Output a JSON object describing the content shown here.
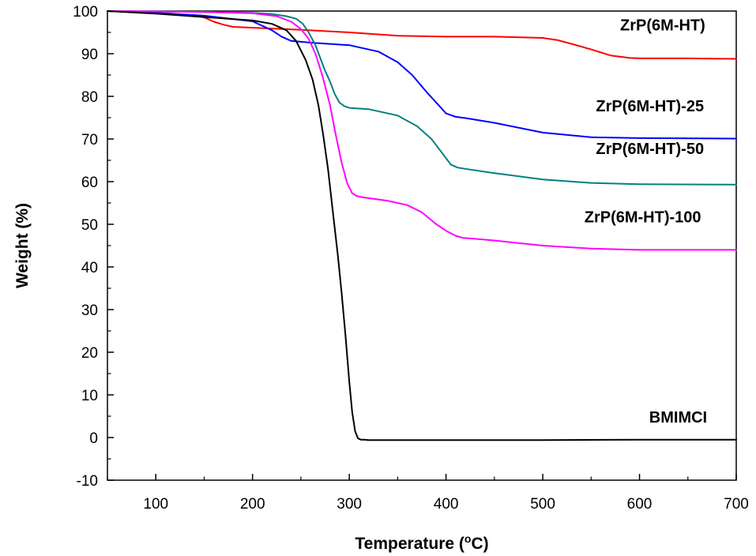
{
  "chart_data": {
    "type": "line",
    "xlabel": "Temperature (",
    "xlabel_sup": "o",
    "xlabel_unit": "C)",
    "ylabel": "Weight (%)",
    "xlim": [
      50,
      700
    ],
    "ylim": [
      -10,
      100
    ],
    "xticks": [
      100,
      200,
      300,
      400,
      500,
      600,
      700
    ],
    "yticks": [
      -10,
      0,
      10,
      20,
      30,
      40,
      50,
      60,
      70,
      80,
      90,
      100
    ],
    "grid": false,
    "legend": "inline labels",
    "series": [
      {
        "name": "ZrP(6M-HT)",
        "color": "#ff0000",
        "x": [
          50,
          100,
          140,
          150,
          160,
          170,
          180,
          200,
          250,
          300,
          350,
          400,
          450,
          500,
          515,
          530,
          550,
          570,
          590,
          600,
          650,
          700
        ],
        "y": [
          100,
          99.5,
          99,
          98.5,
          97.5,
          96.8,
          96.3,
          96.1,
          95.6,
          95,
          94.2,
          94,
          94,
          93.7,
          93.2,
          92.3,
          91,
          89.6,
          89,
          88.9,
          88.9,
          88.8
        ]
      },
      {
        "name": "ZrP(6M-HT)-25",
        "color": "#0000ff",
        "x": [
          50,
          100,
          150,
          200,
          220,
          230,
          240,
          260,
          300,
          330,
          350,
          365,
          380,
          390,
          400,
          410,
          420,
          450,
          500,
          550,
          600,
          700
        ],
        "y": [
          100,
          99.6,
          98.9,
          97.6,
          95.5,
          94,
          93,
          92.6,
          92,
          90.5,
          88,
          85,
          81,
          78.5,
          76,
          75.2,
          74.9,
          73.8,
          71.5,
          70.4,
          70.2,
          70.1
        ]
      },
      {
        "name": "ZrP(6M-HT)-50",
        "color": "#008080",
        "x": [
          50,
          100,
          200,
          220,
          235,
          245,
          252,
          258,
          265,
          270,
          275,
          280,
          285,
          290,
          295,
          300,
          320,
          350,
          370,
          385,
          395,
          405,
          412,
          420,
          450,
          500,
          550,
          600,
          700
        ],
        "y": [
          100,
          99.9,
          99.6,
          99.3,
          98.8,
          98.2,
          97,
          95,
          92,
          89,
          86,
          83.5,
          80.5,
          78.5,
          77.7,
          77.3,
          77,
          75.5,
          73,
          70,
          67,
          64,
          63.3,
          63,
          62,
          60.5,
          59.7,
          59.4,
          59.3
        ]
      },
      {
        "name": "ZrP(6M-HT)-100",
        "color": "#ff00ff",
        "x": [
          50,
          150,
          200,
          225,
          240,
          250,
          258,
          265,
          272,
          280,
          286,
          292,
          298,
          303,
          308,
          315,
          340,
          360,
          375,
          390,
          400,
          410,
          418,
          430,
          450,
          500,
          550,
          600,
          700
        ],
        "y": [
          100,
          99.8,
          99.5,
          98.8,
          97.5,
          95.8,
          93.5,
          90,
          85,
          78,
          71,
          64.5,
          59.5,
          57.3,
          56.6,
          56.3,
          55.5,
          54.5,
          52.8,
          50,
          48.5,
          47.3,
          46.8,
          46.6,
          46.2,
          45,
          44.3,
          44,
          44
        ]
      },
      {
        "name": "BMIMCI",
        "color": "#000000",
        "x": [
          50,
          100,
          150,
          200,
          220,
          235,
          245,
          255,
          262,
          268,
          273,
          278,
          283,
          288,
          292,
          296,
          300,
          303,
          306,
          309,
          312,
          316,
          320,
          350,
          400,
          500,
          600,
          700
        ],
        "y": [
          100,
          99.4,
          98.6,
          97.8,
          97,
          95.5,
          93,
          88.5,
          84,
          78,
          71,
          63,
          53,
          43,
          34,
          24,
          13,
          6,
          1.5,
          -0.2,
          -0.5,
          -0.5,
          -0.6,
          -0.6,
          -0.6,
          -0.6,
          -0.5,
          -0.5
        ]
      }
    ],
    "annotations": [
      {
        "text": "ZrP(6M-HT)",
        "x": 580,
        "y": 95.5
      },
      {
        "text": "ZrP(6M-HT)-25",
        "x": 555,
        "y": 76.5
      },
      {
        "text": "ZrP(6M-HT)-50",
        "x": 555,
        "y": 66.5
      },
      {
        "text": "ZrP(6M-HT)-100",
        "x": 543,
        "y": 50.5
      },
      {
        "text": "BMIMCI",
        "x": 610,
        "y": 3.5
      }
    ]
  }
}
